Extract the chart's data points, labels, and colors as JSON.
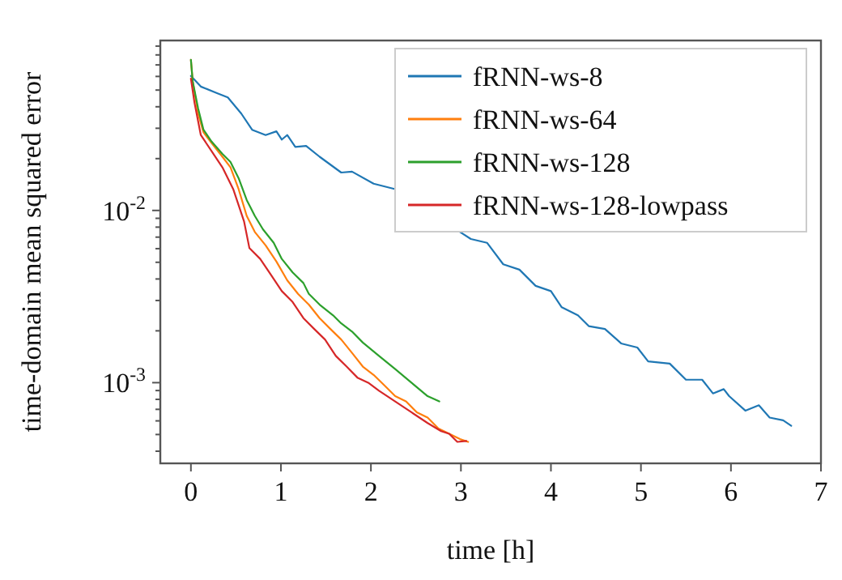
{
  "chart_data": {
    "type": "line",
    "xlabel": "time [h]",
    "ylabel": "time-domain mean squared error",
    "log": "y",
    "grid": false,
    "legend": "top right",
    "line_style": "solid",
    "marker": "none",
    "xlim": [
      -0.34,
      7.0
    ],
    "xticks": [
      0,
      1,
      2,
      3,
      4,
      5,
      6,
      7
    ],
    "ylim": [
      0.00034,
      0.097
    ],
    "yticks": [
      {
        "value": 0.0004,
        "label": null
      },
      {
        "value": 0.0005,
        "label": null
      },
      {
        "value": 0.0006,
        "label": null
      },
      {
        "value": 0.0007,
        "label": null
      },
      {
        "value": 0.0008,
        "label": null
      },
      {
        "value": 0.0009,
        "label": null
      },
      {
        "value": 0.001,
        "label": "10$^{-3}$"
      },
      {
        "value": 0.002,
        "label": null
      },
      {
        "value": 0.003,
        "label": null
      },
      {
        "value": 0.004,
        "label": null
      },
      {
        "value": 0.005,
        "label": null
      },
      {
        "value": 0.006,
        "label": null
      },
      {
        "value": 0.007,
        "label": null
      },
      {
        "value": 0.008,
        "label": null
      },
      {
        "value": 0.009,
        "label": null
      },
      {
        "value": 0.01,
        "label": "10$^{-2}$"
      },
      {
        "value": 0.02,
        "label": null
      },
      {
        "value": 0.03,
        "label": null
      },
      {
        "value": 0.04,
        "label": null
      },
      {
        "value": 0.05,
        "label": null
      },
      {
        "value": 0.06,
        "label": null
      },
      {
        "value": 0.07,
        "label": null
      },
      {
        "value": 0.08,
        "label": null
      },
      {
        "value": 0.09,
        "label": null
      }
    ],
    "series": [
      {
        "name": "fRNN-ws-8",
        "color": "#1f77b4",
        "x": [
          0,
          0.11,
          0.29,
          0.41,
          0.56,
          0.68,
          0.83,
          0.95,
          1.01,
          1.07,
          1.16,
          1.28,
          1.43,
          1.67,
          1.79,
          2.03,
          2.27,
          2.51,
          2.75,
          2.99,
          3.11,
          3.29,
          3.47,
          3.65,
          3.83,
          4.0,
          4.12,
          4.3,
          4.42,
          4.6,
          4.78,
          4.96,
          5.08,
          5.32,
          5.5,
          5.68,
          5.8,
          5.92,
          5.98,
          6.16,
          6.31,
          6.43,
          6.58,
          6.67
        ],
        "values": [
          0.0604,
          0.0524,
          0.048,
          0.0453,
          0.0365,
          0.0294,
          0.0274,
          0.0288,
          0.0258,
          0.0274,
          0.0234,
          0.0237,
          0.0205,
          0.0166,
          0.0168,
          0.0143,
          0.0133,
          null,
          null,
          0.0075,
          0.00683,
          0.00649,
          0.00487,
          0.00453,
          0.00365,
          0.0034,
          0.00274,
          0.00246,
          0.00213,
          0.00205,
          0.00169,
          0.0016,
          0.00133,
          0.00129,
          0.00104,
          0.00104,
          0.000866,
          0.000917,
          0.000835,
          0.000688,
          0.000739,
          0.000627,
          0.000604,
          0.000562
        ]
      },
      {
        "name": "fRNN-ws-64",
        "color": "#ff7f0e",
        "x": [
          0,
          0.02,
          0.08,
          0.14,
          0.23,
          0.35,
          0.44,
          0.53,
          0.62,
          0.71,
          0.83,
          0.95,
          1.07,
          1.19,
          1.31,
          1.43,
          1.55,
          1.67,
          1.79,
          1.91,
          2.03,
          2.15,
          2.27,
          2.39,
          2.51,
          2.63,
          2.75,
          2.87,
          2.99,
          3.08
        ],
        "values": [
          0.075,
          0.0562,
          0.0365,
          0.0284,
          0.0246,
          0.0205,
          0.0178,
          0.0133,
          0.0093,
          0.0075,
          0.00627,
          0.00505,
          0.00393,
          0.00328,
          0.00284,
          0.00237,
          0.00205,
          0.00178,
          0.00149,
          0.00124,
          0.00111,
          0.000964,
          0.000835,
          0.000778,
          0.000673,
          0.000627,
          0.000542,
          0.000505,
          0.00047,
          0.000453
        ]
      },
      {
        "name": "fRNN-ws-128",
        "color": "#2ca02c",
        "x": [
          0,
          0.02,
          0.08,
          0.14,
          0.23,
          0.35,
          0.44,
          0.53,
          0.62,
          0.71,
          0.8,
          0.92,
          1.01,
          1.13,
          1.25,
          1.31,
          1.43,
          1.58,
          1.67,
          1.79,
          1.91,
          2.09,
          2.27,
          2.45,
          2.63,
          2.76
        ],
        "values": [
          0.075,
          0.0562,
          0.0392,
          0.0294,
          0.0251,
          0.0213,
          0.0191,
          0.0154,
          0.0115,
          0.0093,
          0.00778,
          0.00649,
          0.00523,
          0.00437,
          0.00379,
          0.00328,
          0.00284,
          0.00246,
          0.00221,
          0.00198,
          0.00171,
          0.00143,
          0.0012,
          0.001,
          0.000835,
          0.000778
        ]
      },
      {
        "name": "fRNN-ws-128-lowpass",
        "color": "#d62728",
        "x": [
          0,
          0.04,
          0.11,
          0.23,
          0.35,
          0.47,
          0.59,
          0.65,
          0.77,
          0.89,
          1.01,
          1.13,
          1.25,
          1.37,
          1.49,
          1.61,
          1.73,
          1.85,
          1.97,
          2.09,
          2.27,
          2.45,
          2.63,
          2.78,
          2.87,
          2.96,
          3.06
        ],
        "values": [
          0.0583,
          0.0422,
          0.0274,
          0.0221,
          0.0178,
          0.0133,
          0.00866,
          0.00604,
          0.00523,
          0.00422,
          0.0034,
          0.00294,
          0.00237,
          0.00205,
          0.00178,
          0.00143,
          0.00124,
          0.00107,
          0.001,
          0.000898,
          0.000778,
          0.000673,
          0.000583,
          0.000523,
          0.000505,
          0.000453,
          0.000459
        ]
      }
    ]
  }
}
